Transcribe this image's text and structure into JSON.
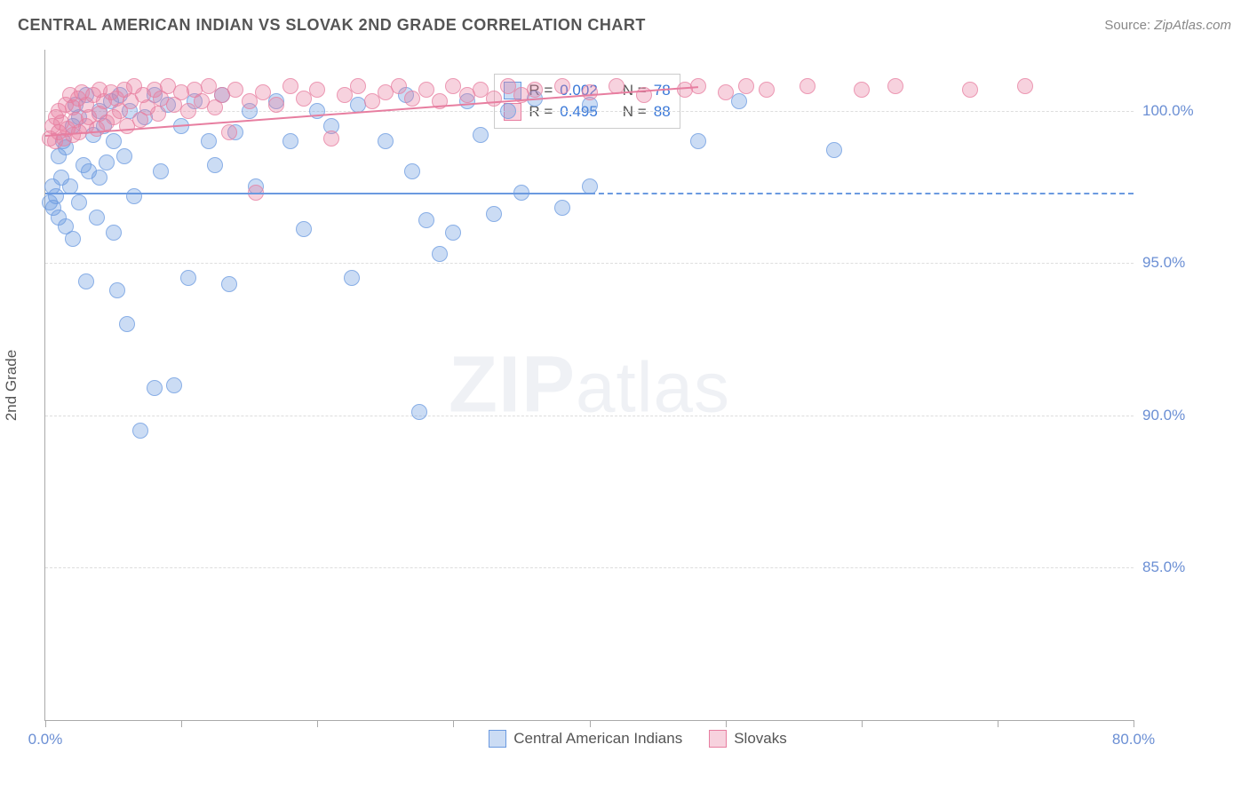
{
  "header": {
    "title": "CENTRAL AMERICAN INDIAN VS SLOVAK 2ND GRADE CORRELATION CHART",
    "source_label": "Source:",
    "source_value": "ZipAtlas.com"
  },
  "watermark": {
    "bold": "ZIP",
    "light": "atlas"
  },
  "chart": {
    "type": "scatter",
    "background_color": "#ffffff",
    "grid_color": "#dddddd",
    "axis_color": "#aaaaaa",
    "yaxis_title": "2nd Grade",
    "axis_title_color": "#555555",
    "tick_label_color": "#6b8fd4",
    "label_fontsize": 17,
    "xlim": [
      0,
      80
    ],
    "ylim": [
      80,
      102
    ],
    "xticks": [
      0,
      10,
      20,
      30,
      40,
      50,
      60,
      70,
      80
    ],
    "xtick_labels": {
      "0": "0.0%",
      "80": "80.0%"
    },
    "yticks": [
      85,
      90,
      95,
      100
    ],
    "ytick_labels": {
      "85": "85.0%",
      "90": "90.0%",
      "95": "95.0%",
      "100": "100.0%"
    },
    "marker_radius": 9,
    "marker_opacity": 0.35,
    "marker_border_opacity": 0.7,
    "series": [
      {
        "name": "Central American Indians",
        "color": "#6b9ae0",
        "stats": {
          "R": "0.002",
          "N": "78"
        },
        "trend": {
          "x1": 0,
          "y1": 97.3,
          "x2": 40,
          "y2": 97.3,
          "dash_to_x": 80
        },
        "points": [
          [
            0.3,
            97.0
          ],
          [
            0.5,
            97.5
          ],
          [
            0.6,
            96.8
          ],
          [
            0.8,
            97.2
          ],
          [
            1.0,
            98.5
          ],
          [
            1.0,
            96.5
          ],
          [
            1.2,
            97.8
          ],
          [
            1.3,
            99.0
          ],
          [
            1.5,
            96.2
          ],
          [
            1.5,
            98.8
          ],
          [
            1.8,
            97.5
          ],
          [
            2.0,
            99.5
          ],
          [
            2.0,
            95.8
          ],
          [
            2.2,
            100.2
          ],
          [
            2.5,
            97.0
          ],
          [
            2.5,
            99.8
          ],
          [
            2.8,
            98.2
          ],
          [
            3.0,
            100.5
          ],
          [
            3.0,
            94.4
          ],
          [
            3.2,
            98.0
          ],
          [
            3.5,
            99.2
          ],
          [
            3.8,
            96.5
          ],
          [
            4.0,
            100.0
          ],
          [
            4.0,
            97.8
          ],
          [
            4.3,
            99.5
          ],
          [
            4.5,
            98.3
          ],
          [
            4.8,
            100.3
          ],
          [
            5.0,
            96.0
          ],
          [
            5.0,
            99.0
          ],
          [
            5.3,
            94.1
          ],
          [
            5.5,
            100.5
          ],
          [
            5.8,
            98.5
          ],
          [
            6.0,
            93.0
          ],
          [
            6.2,
            100.0
          ],
          [
            6.5,
            97.2
          ],
          [
            7.0,
            89.5
          ],
          [
            7.3,
            99.8
          ],
          [
            8.0,
            100.5
          ],
          [
            8.0,
            90.9
          ],
          [
            8.5,
            98.0
          ],
          [
            9.0,
            100.2
          ],
          [
            9.5,
            91.0
          ],
          [
            10.0,
            99.5
          ],
          [
            10.5,
            94.5
          ],
          [
            11.0,
            100.3
          ],
          [
            12.0,
            99.0
          ],
          [
            12.5,
            98.2
          ],
          [
            13.0,
            100.5
          ],
          [
            13.5,
            94.3
          ],
          [
            14.0,
            99.3
          ],
          [
            15.0,
            100.0
          ],
          [
            15.5,
            97.5
          ],
          [
            17.0,
            100.3
          ],
          [
            18.0,
            99.0
          ],
          [
            19.0,
            96.1
          ],
          [
            20.0,
            100.0
          ],
          [
            21.0,
            99.5
          ],
          [
            22.5,
            94.5
          ],
          [
            23.0,
            100.2
          ],
          [
            25.0,
            99.0
          ],
          [
            26.5,
            100.5
          ],
          [
            27.0,
            98.0
          ],
          [
            27.5,
            90.1
          ],
          [
            28.0,
            96.4
          ],
          [
            29.0,
            95.3
          ],
          [
            30.0,
            96.0
          ],
          [
            31.0,
            100.3
          ],
          [
            32.0,
            99.2
          ],
          [
            33.0,
            96.6
          ],
          [
            34.0,
            100.0
          ],
          [
            35.0,
            97.3
          ],
          [
            36.0,
            100.4
          ],
          [
            38.0,
            96.8
          ],
          [
            40.0,
            100.2
          ],
          [
            40.0,
            97.5
          ],
          [
            48.0,
            99.0
          ],
          [
            51.0,
            100.3
          ],
          [
            58.0,
            98.7
          ]
        ]
      },
      {
        "name": "Slovaks",
        "color": "#e77ea0",
        "stats": {
          "R": "0.495",
          "N": "88"
        },
        "trend": {
          "x1": 0,
          "y1": 99.2,
          "x2": 48,
          "y2": 100.8
        },
        "points": [
          [
            0.3,
            99.1
          ],
          [
            0.5,
            99.5
          ],
          [
            0.7,
            99.0
          ],
          [
            0.8,
            99.8
          ],
          [
            1.0,
            99.3
          ],
          [
            1.0,
            100.0
          ],
          [
            1.2,
            99.6
          ],
          [
            1.4,
            99.1
          ],
          [
            1.5,
            100.2
          ],
          [
            1.6,
            99.4
          ],
          [
            1.8,
            100.5
          ],
          [
            2.0,
            99.2
          ],
          [
            2.0,
            100.1
          ],
          [
            2.2,
            99.7
          ],
          [
            2.4,
            100.4
          ],
          [
            2.5,
            99.3
          ],
          [
            2.7,
            100.6
          ],
          [
            3.0,
            99.5
          ],
          [
            3.0,
            100.2
          ],
          [
            3.2,
            99.8
          ],
          [
            3.5,
            100.5
          ],
          [
            3.8,
            99.4
          ],
          [
            4.0,
            100.7
          ],
          [
            4.0,
            99.9
          ],
          [
            4.3,
            100.3
          ],
          [
            4.5,
            99.6
          ],
          [
            4.8,
            100.6
          ],
          [
            5.0,
            99.8
          ],
          [
            5.2,
            100.4
          ],
          [
            5.5,
            100.0
          ],
          [
            5.8,
            100.7
          ],
          [
            6.0,
            99.5
          ],
          [
            6.3,
            100.3
          ],
          [
            6.5,
            100.8
          ],
          [
            7.0,
            99.7
          ],
          [
            7.2,
            100.5
          ],
          [
            7.5,
            100.1
          ],
          [
            8.0,
            100.7
          ],
          [
            8.3,
            99.9
          ],
          [
            8.5,
            100.4
          ],
          [
            9.0,
            100.8
          ],
          [
            9.5,
            100.2
          ],
          [
            10.0,
            100.6
          ],
          [
            10.5,
            100.0
          ],
          [
            11.0,
            100.7
          ],
          [
            11.5,
            100.3
          ],
          [
            12.0,
            100.8
          ],
          [
            12.5,
            100.1
          ],
          [
            13.0,
            100.5
          ],
          [
            13.5,
            99.3
          ],
          [
            14.0,
            100.7
          ],
          [
            15.0,
            100.3
          ],
          [
            15.5,
            97.3
          ],
          [
            16.0,
            100.6
          ],
          [
            17.0,
            100.2
          ],
          [
            18.0,
            100.8
          ],
          [
            19.0,
            100.4
          ],
          [
            20.0,
            100.7
          ],
          [
            21.0,
            99.1
          ],
          [
            22.0,
            100.5
          ],
          [
            23.0,
            100.8
          ],
          [
            24.0,
            100.3
          ],
          [
            25.0,
            100.6
          ],
          [
            26.0,
            100.8
          ],
          [
            27.0,
            100.4
          ],
          [
            28.0,
            100.7
          ],
          [
            29.0,
            100.3
          ],
          [
            30.0,
            100.8
          ],
          [
            31.0,
            100.5
          ],
          [
            32.0,
            100.7
          ],
          [
            33.0,
            100.4
          ],
          [
            34.0,
            100.8
          ],
          [
            35.0,
            100.5
          ],
          [
            36.0,
            100.7
          ],
          [
            38.0,
            100.8
          ],
          [
            40.0,
            100.6
          ],
          [
            42.0,
            100.8
          ],
          [
            44.0,
            100.5
          ],
          [
            47.0,
            100.7
          ],
          [
            48.0,
            100.8
          ],
          [
            50.0,
            100.6
          ],
          [
            51.5,
            100.8
          ],
          [
            53.0,
            100.7
          ],
          [
            56.0,
            100.8
          ],
          [
            60.0,
            100.7
          ],
          [
            62.5,
            100.8
          ],
          [
            68.0,
            100.7
          ],
          [
            72.0,
            100.8
          ]
        ]
      }
    ],
    "legend_box": {
      "R_label": "R =",
      "N_label": "N ="
    },
    "bottom_legend": [
      {
        "label": "Central American Indians",
        "color": "#6b9ae0"
      },
      {
        "label": "Slovaks",
        "color": "#e77ea0"
      }
    ]
  }
}
